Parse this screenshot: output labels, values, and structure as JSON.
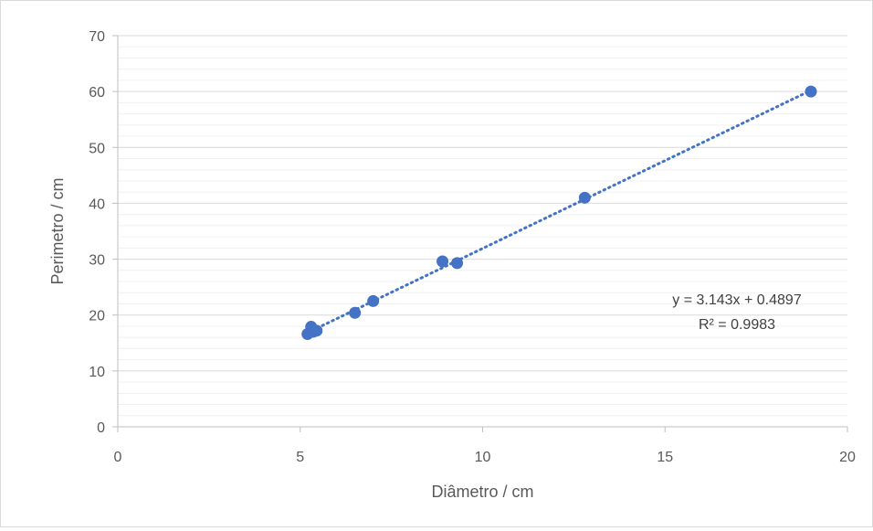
{
  "chart_data": {
    "type": "scatter",
    "title": "",
    "xlabel": "Diâmetro / cm",
    "ylabel": "Perimetro / cm",
    "xlim": [
      0,
      20
    ],
    "ylim": [
      0,
      70
    ],
    "x_ticks": [
      "0",
      "5",
      "10",
      "15",
      "20"
    ],
    "y_ticks": [
      "0",
      "10",
      "20",
      "30",
      "40",
      "50",
      "60",
      "70"
    ],
    "grid": "major and minor horizontal gridlines",
    "legend": "none",
    "series": [
      {
        "points": [
          {
            "x": 5.2,
            "y": 16.6
          },
          {
            "x": 5.3,
            "y": 17.9
          },
          {
            "x": 5.35,
            "y": 17.0
          },
          {
            "x": 5.45,
            "y": 17.2
          },
          {
            "x": 6.5,
            "y": 20.4
          },
          {
            "x": 7.0,
            "y": 22.5
          },
          {
            "x": 8.9,
            "y": 29.6
          },
          {
            "x": 9.3,
            "y": 29.3
          },
          {
            "x": 12.8,
            "y": 41.0
          },
          {
            "x": 19.0,
            "y": 60.0
          }
        ],
        "color": "#4472c4"
      }
    ],
    "trendline": {
      "type": "linear",
      "slope": 3.143,
      "intercept": 0.4897,
      "x_range": [
        5.2,
        19.0
      ],
      "style": "dotted",
      "color": "#4472c4",
      "equation_label": "y = 3.143x + 0.4897",
      "r2_label": "R² = 0.9983"
    }
  }
}
